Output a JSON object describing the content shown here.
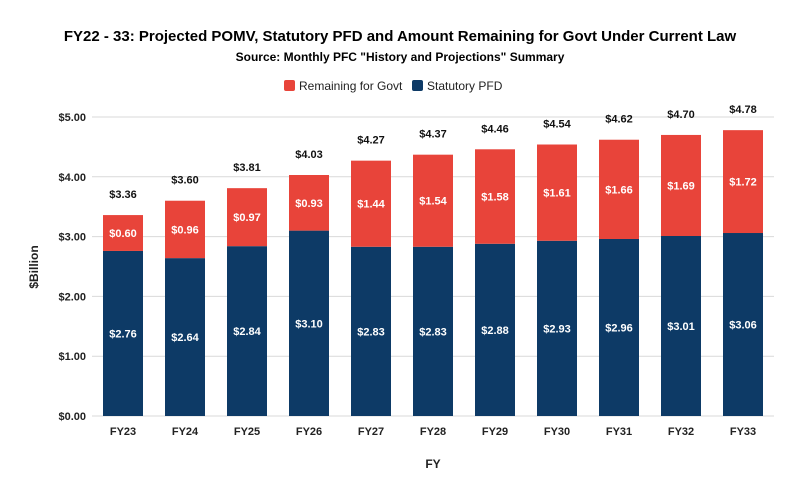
{
  "chart_data": {
    "type": "bar",
    "stacked": true,
    "title": "FY22 - 33: Projected POMV, Statutory PFD and Amount Remaining for Govt Under Current Law",
    "subtitle": "Source: Monthly PFC \"History and Projections\" Summary",
    "xlabel": "FY",
    "ylabel": "$Billion",
    "ylim": [
      0,
      5
    ],
    "yticks": [
      "$0.00",
      "$1.00",
      "$2.00",
      "$3.00",
      "$4.00",
      "$5.00"
    ],
    "ytick_values": [
      0,
      1,
      2,
      3,
      4,
      5
    ],
    "grid": true,
    "legend_position": "top",
    "categories": [
      "FY23",
      "FY24",
      "FY25",
      "FY26",
      "FY27",
      "FY28",
      "FY29",
      "FY30",
      "FY31",
      "FY32",
      "FY33"
    ],
    "series": [
      {
        "name": "Statutory PFD",
        "color": "#0d3a66",
        "values": [
          2.76,
          2.64,
          2.84,
          3.1,
          2.83,
          2.83,
          2.88,
          2.93,
          2.96,
          3.01,
          3.06
        ],
        "labels": [
          "$2.76",
          "$2.64",
          "$2.84",
          "$3.10",
          "$2.83",
          "$2.83",
          "$2.88",
          "$2.93",
          "$2.96",
          "$3.01",
          "$3.06"
        ]
      },
      {
        "name": "Remaining for Govt",
        "color": "#e8443a",
        "values": [
          0.6,
          0.96,
          0.97,
          0.93,
          1.44,
          1.54,
          1.58,
          1.61,
          1.66,
          1.69,
          1.72
        ],
        "labels": [
          "$0.60",
          "$0.96",
          "$0.97",
          "$0.93",
          "$1.44",
          "$1.54",
          "$1.58",
          "$1.61",
          "$1.66",
          "$1.69",
          "$1.72"
        ]
      }
    ],
    "totals": [
      3.36,
      3.6,
      3.81,
      4.03,
      4.27,
      4.37,
      4.46,
      4.54,
      4.62,
      4.7,
      4.78
    ],
    "total_labels": [
      "$3.36",
      "$3.60",
      "$3.81",
      "$4.03",
      "$4.27",
      "$4.37",
      "$4.46",
      "$4.54",
      "$4.62",
      "$4.70",
      "$4.78"
    ],
    "legend_order": [
      "Remaining for Govt",
      "Statutory PFD"
    ]
  }
}
